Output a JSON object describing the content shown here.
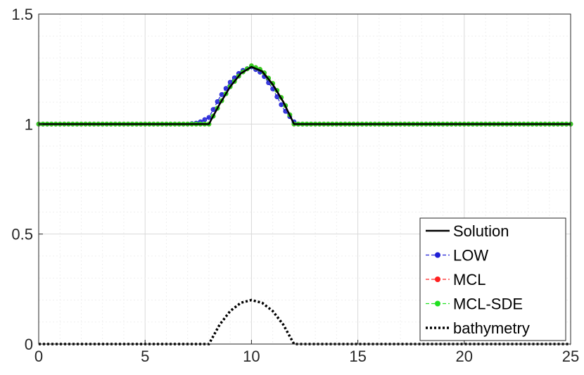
{
  "chart_data": {
    "type": "line",
    "title": "",
    "xlabel": "",
    "ylabel": "",
    "xlim": [
      0,
      25
    ],
    "ylim": [
      0,
      1.5
    ],
    "xticks": [
      0,
      5,
      10,
      15,
      20,
      25
    ],
    "yticks": [
      0,
      0.5,
      1,
      1.5
    ],
    "xtick_labels": [
      "0",
      "5",
      "10",
      "15",
      "20",
      "25"
    ],
    "ytick_labels": [
      "0",
      "0.5",
      "1",
      "1.5"
    ],
    "grid": true,
    "legend_position": "bottom-right",
    "series": [
      {
        "name": "Solution",
        "color": "#000000",
        "style": "solid",
        "marker": "none",
        "x": [
          0,
          7.9,
          8.0,
          8.5,
          9.0,
          9.5,
          10.0,
          10.5,
          11.0,
          11.5,
          12.0,
          25
        ],
        "y": [
          1.0,
          1.0,
          1.0,
          1.09,
          1.17,
          1.23,
          1.26,
          1.24,
          1.18,
          1.1,
          1.0,
          1.0
        ]
      },
      {
        "name": "LOW",
        "color": "#1f1fd6",
        "style": "dashed",
        "marker": "circle",
        "x": [
          0,
          7.0,
          7.5,
          8.0,
          8.5,
          9.0,
          9.5,
          10.0,
          10.5,
          11.0,
          11.5,
          12.0,
          12.2,
          25
        ],
        "y": [
          1.0,
          1.0,
          1.005,
          1.03,
          1.12,
          1.19,
          1.24,
          1.26,
          1.23,
          1.16,
          1.07,
          1.01,
          1.0,
          1.0
        ]
      },
      {
        "name": "MCL",
        "color": "#ff2020",
        "style": "dashed",
        "marker": "circle",
        "x": [
          0,
          7.9,
          8.0,
          8.5,
          9.0,
          9.5,
          10.0,
          10.5,
          11.0,
          11.5,
          12.0,
          25
        ],
        "y": [
          1.0,
          1.0,
          1.0,
          1.09,
          1.17,
          1.23,
          1.265,
          1.245,
          1.185,
          1.105,
          1.0,
          1.0
        ]
      },
      {
        "name": "MCL-SDE",
        "color": "#20e020",
        "style": "dashed",
        "marker": "circle",
        "x": [
          0,
          7.9,
          8.0,
          8.5,
          9.0,
          9.5,
          10.0,
          10.5,
          11.0,
          11.5,
          12.0,
          25
        ],
        "y": [
          1.0,
          1.0,
          1.0,
          1.09,
          1.17,
          1.23,
          1.265,
          1.245,
          1.185,
          1.105,
          1.0,
          1.0
        ]
      },
      {
        "name": "bathymetry",
        "color": "#000000",
        "style": "dotted",
        "marker": "none",
        "x": [
          0,
          8.0,
          8.5,
          9.0,
          9.5,
          10.0,
          10.5,
          11.0,
          11.5,
          12.0,
          25
        ],
        "y": [
          0,
          0,
          0.0875,
          0.15,
          0.1875,
          0.2,
          0.1875,
          0.15,
          0.0875,
          0,
          0
        ]
      }
    ]
  }
}
